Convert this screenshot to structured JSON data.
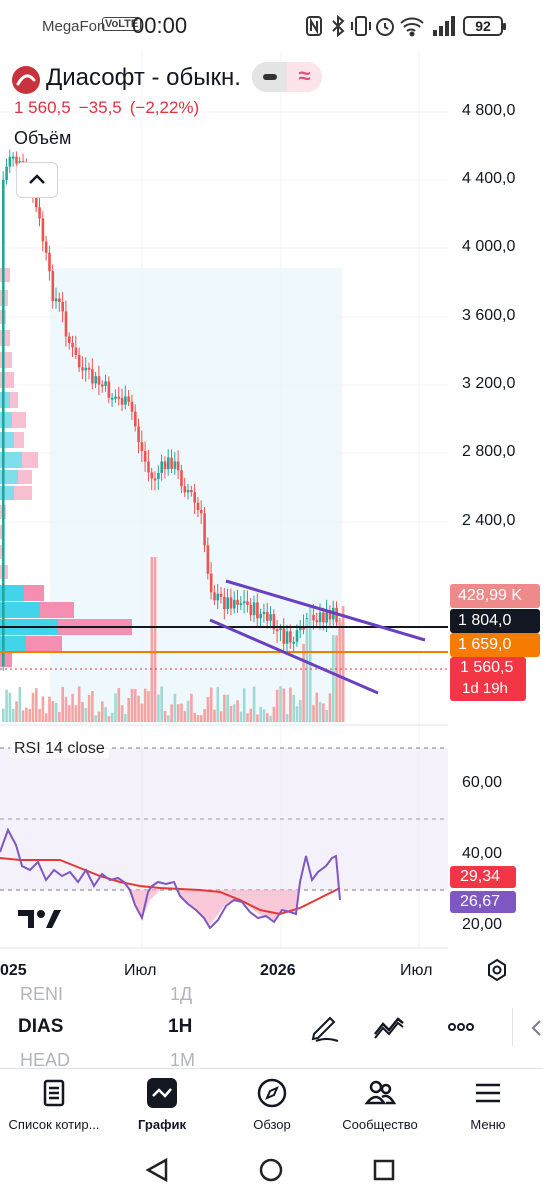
{
  "status_bar": {
    "carrier": "MegaFon",
    "volte": "VoLTE",
    "time": "00:00",
    "battery": "92",
    "icons": [
      "nfc-icon",
      "bluetooth-icon",
      "vibrate-icon",
      "alarm-icon",
      "wifi-icon",
      "signal-icon"
    ]
  },
  "symbol": {
    "name": "Диасофт - обыкн.",
    "price": "1 560,5",
    "change": "−35,5",
    "change_pct": "(−2,22%)",
    "toggle_left_icon": "minus-icon",
    "toggle_right_icon": "≈"
  },
  "volume_label": "Объём",
  "price_axis": [
    "4 800,0",
    "4 400,0",
    "4 000,0",
    "3 600,0",
    "3 200,0",
    "2 800,0",
    "2 400,0"
  ],
  "price_tags": {
    "volume": "428,99 K",
    "line_black": "1 804,0",
    "line_orange": "1 659,0",
    "last": "1 560,5",
    "countdown": "1d 19h"
  },
  "rsi": {
    "label": "RSI",
    "params": "14 close",
    "axis": [
      "60,00",
      "40,00",
      "20,00"
    ],
    "value_red": "29,34",
    "value_purple": "26,67"
  },
  "time_axis": [
    "025",
    "Июл",
    "2026",
    "Июл"
  ],
  "toolbar": {
    "prev_symbol": "RENI",
    "prev_interval": "1Д",
    "symbol": "DIAS",
    "interval": "1H",
    "next_symbol": "HEAD",
    "next_interval": "1M"
  },
  "nav": [
    {
      "label": "Список котир..."
    },
    {
      "label": "График"
    },
    {
      "label": "Обзор"
    },
    {
      "label": "Сообщество"
    },
    {
      "label": "Меню"
    }
  ],
  "colors": {
    "up": "#26a69a",
    "down": "#ef5350",
    "accent_red": "#e0323e",
    "orange": "#f57c00",
    "purple": "#7e57c2"
  }
}
